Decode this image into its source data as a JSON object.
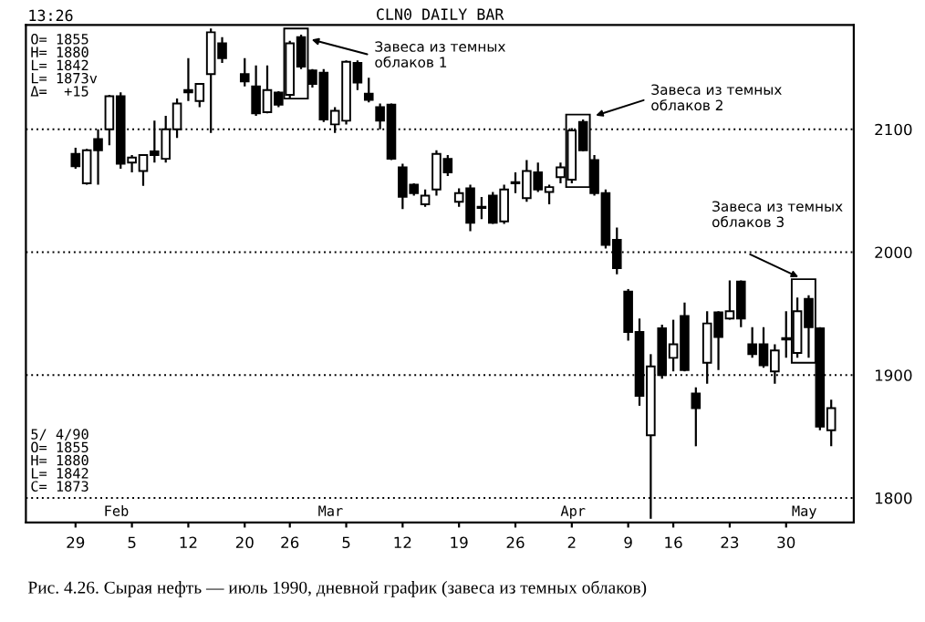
{
  "chart_data": {
    "type": "candlestick",
    "title": "CLN0 DAILY BAR",
    "categories": [
      "29",
      null,
      null,
      null,
      null,
      "5",
      null,
      null,
      null,
      null,
      "12",
      null,
      null,
      null,
      null,
      "20",
      null,
      null,
      null,
      "26",
      null,
      null,
      null,
      null,
      "5",
      null,
      null,
      null,
      null,
      "12",
      null,
      null,
      null,
      null,
      "19",
      null,
      null,
      null,
      null,
      "26",
      null,
      null,
      null,
      null,
      "2",
      null,
      null,
      null,
      null,
      "9",
      null,
      null,
      null,
      "16",
      null,
      null,
      null,
      null,
      "23",
      null,
      null,
      null,
      null,
      "30",
      null,
      null,
      null,
      null
    ],
    "ohlc": [
      [
        2080,
        2085,
        2068,
        2070
      ],
      [
        2056,
        2084,
        2055,
        2083
      ],
      [
        2092,
        2100,
        2055,
        2083
      ],
      [
        2100,
        2128,
        2087,
        2127
      ],
      [
        2127,
        2130,
        2068,
        2072
      ],
      [
        2073,
        2079,
        2065,
        2077
      ],
      [
        2066,
        2079,
        2054,
        2079
      ],
      [
        2082,
        2107,
        2073,
        2079
      ],
      [
        2076,
        2111,
        2073,
        2100
      ],
      [
        2100,
        2125,
        2093,
        2121
      ],
      [
        2132,
        2158,
        2123,
        2130
      ],
      [
        2123,
        2137,
        2118,
        2137
      ],
      [
        2145,
        2182,
        2097,
        2179
      ],
      [
        2170,
        2175,
        2154,
        2158
      ],
      null,
      [
        2145,
        2158,
        2135,
        2139
      ],
      [
        2135,
        2152,
        2111,
        2113
      ],
      [
        2114,
        2152,
        2113,
        2132
      ],
      [
        2130,
        2131,
        2118,
        2120
      ],
      [
        2128,
        2172,
        2125,
        2170
      ],
      [
        2175,
        2177,
        2149,
        2151
      ],
      [
        2148,
        2149,
        2134,
        2137
      ],
      [
        2146,
        2149,
        2106,
        2108
      ],
      [
        2104,
        2118,
        2097,
        2115
      ],
      [
        2107,
        2156,
        2104,
        2155
      ],
      [
        2154,
        2156,
        2132,
        2138
      ],
      [
        2129,
        2142,
        2122,
        2124
      ],
      [
        2118,
        2121,
        2100,
        2107
      ],
      [
        2120,
        2121,
        2075,
        2076
      ],
      [
        2069,
        2072,
        2035,
        2045
      ],
      [
        2055,
        2056,
        2046,
        2048
      ],
      [
        2039,
        2051,
        2037,
        2046
      ],
      [
        2051,
        2083,
        2046,
        2080
      ],
      [
        2076,
        2079,
        2062,
        2065
      ],
      [
        2041,
        2052,
        2037,
        2048
      ],
      [
        2052,
        2055,
        2017,
        2024
      ],
      [
        2037,
        2045,
        2027,
        2036
      ],
      [
        2046,
        2049,
        2023,
        2024
      ],
      [
        2025,
        2055,
        2023,
        2051
      ],
      [
        2057,
        2065,
        2048,
        2056
      ],
      [
        2044,
        2075,
        2041,
        2066
      ],
      [
        2065,
        2073,
        2049,
        2051
      ],
      [
        2049,
        2055,
        2039,
        2053
      ],
      [
        2061,
        2073,
        2056,
        2069
      ],
      [
        2059,
        2101,
        2056,
        2099
      ],
      [
        2106,
        2108,
        2082,
        2083
      ],
      [
        2075,
        2079,
        2046,
        2048
      ],
      [
        2048,
        2051,
        2003,
        2006
      ],
      [
        2010,
        2020,
        1982,
        1987
      ],
      [
        1968,
        1970,
        1928,
        1935
      ],
      [
        1935,
        1946,
        1875,
        1883
      ],
      [
        1851,
        1917,
        1783,
        1907
      ],
      [
        1938,
        1941,
        1897,
        1900
      ],
      [
        1914,
        1945,
        1903,
        1925
      ],
      [
        1948,
        1959,
        1903,
        1904
      ],
      [
        1885,
        1890,
        1842,
        1873
      ],
      [
        1910,
        1952,
        1893,
        1942
      ],
      [
        1951,
        1952,
        1904,
        1931
      ],
      [
        1946,
        1977,
        1945,
        1952
      ],
      [
        1976,
        1977,
        1939,
        1946
      ],
      [
        1925,
        1939,
        1914,
        1917
      ],
      [
        1925,
        1939,
        1906,
        1908
      ],
      [
        1903,
        1925,
        1893,
        1920
      ],
      [
        1930,
        1952,
        1914,
        1929
      ],
      [
        1918,
        1963,
        1914,
        1952
      ],
      [
        1962,
        1965,
        1914,
        1939
      ],
      [
        1938,
        1939,
        1855,
        1858
      ],
      [
        1855,
        1880,
        1842,
        1873
      ]
    ],
    "ylim": [
      1780,
      2185
    ],
    "yticks": [
      1800,
      1900,
      2000,
      2100
    ],
    "grid": "y",
    "legend": false,
    "annotations": [
      "13:26",
      "O= 1855\nH= 1880\nL= 1842\nL= 1873v\nΔ=  +15",
      "Завеса из темных\nоблаков 1",
      "Завеса из темных\nоблаков 2",
      "Завеса из темных\nоблаков 3",
      "5/ 4/90\nO= 1855\nH= 1880\nL= 1842\nC= 1873",
      "Feb",
      "Mar",
      "Apr",
      "May",
      "Рис. 4.26. Сырая нефть — июль 1990, дневной график (завеса из темных облаков)"
    ]
  }
}
